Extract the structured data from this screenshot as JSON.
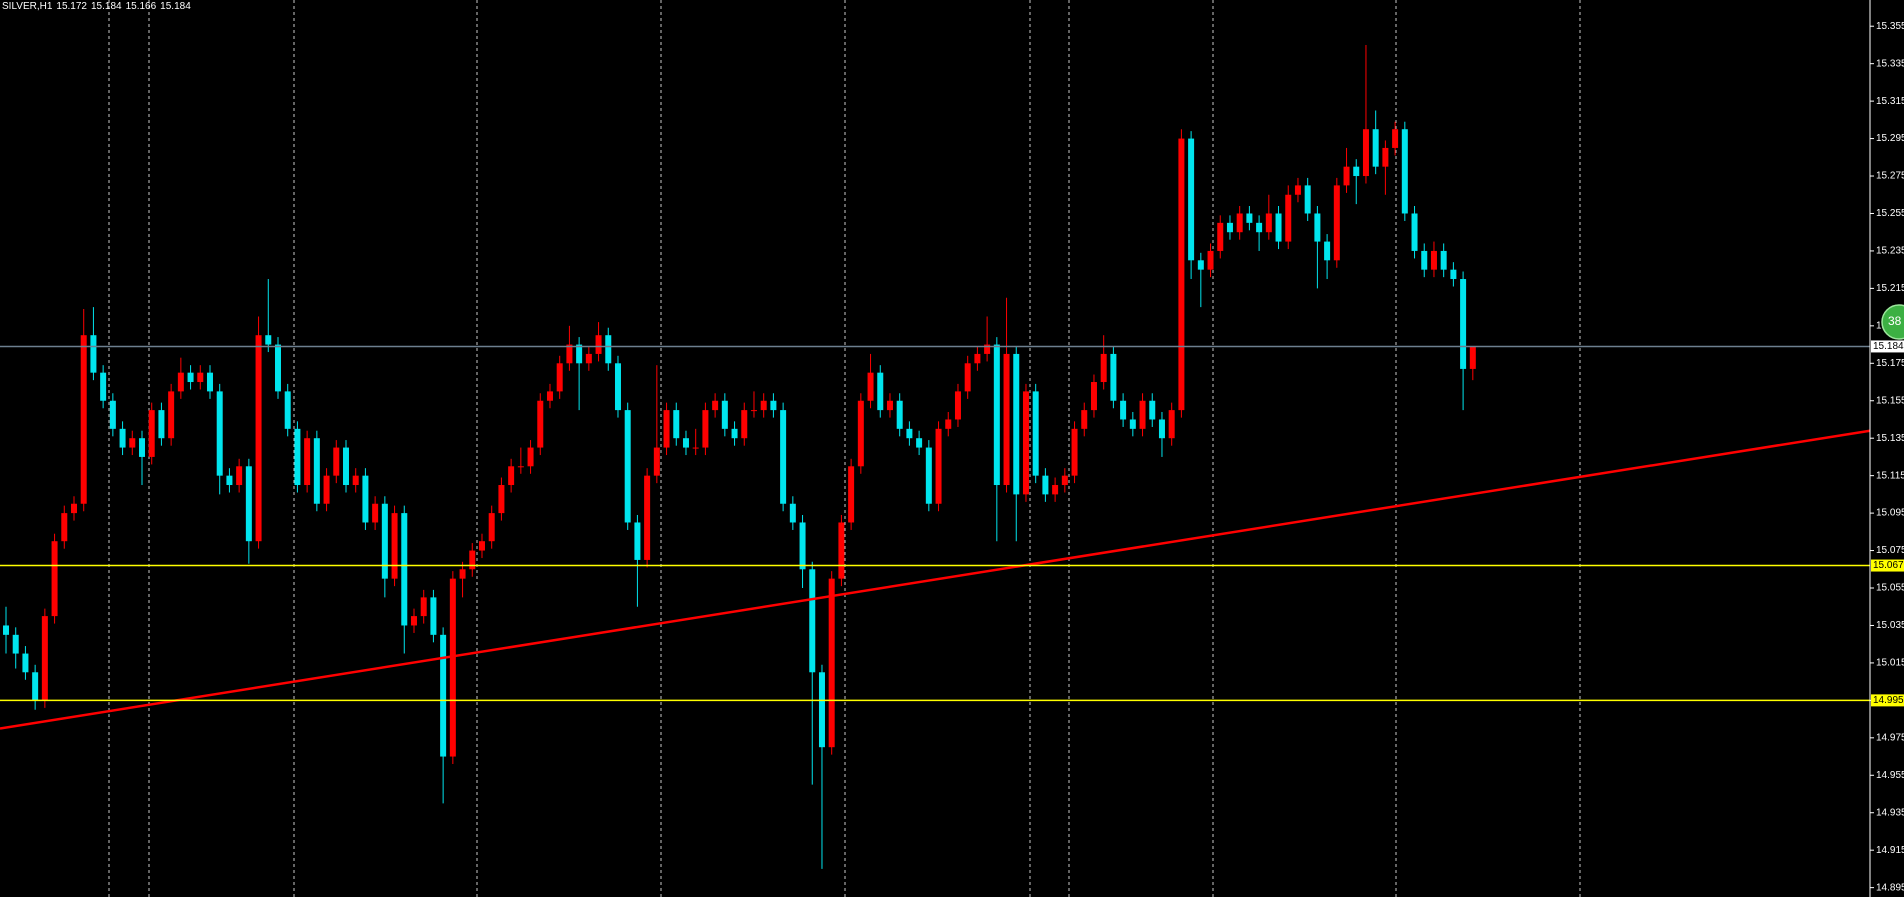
{
  "chart_data": {
    "type": "candlestick",
    "symbol": "SILVER,H1",
    "bull_color": "#ff0000",
    "bear_color": "#00e5ee",
    "ylim": [
      14.89,
      15.369
    ],
    "yticks": [
      15.355,
      15.335,
      15.315,
      15.295,
      15.275,
      15.255,
      15.235,
      15.215,
      15.195,
      15.175,
      15.155,
      15.135,
      15.115,
      15.095,
      15.075,
      15.055,
      15.035,
      15.015,
      14.995,
      14.975,
      14.955,
      14.935,
      14.915,
      14.895
    ],
    "levels": [
      {
        "value": 15.184,
        "color": "#6d7f8f"
      },
      {
        "value": 15.067,
        "color": "#ffff00"
      },
      {
        "value": 14.995,
        "color": "#ffff00"
      }
    ],
    "trendline": {
      "color": "#ff0000",
      "start": 14.98,
      "end": 15.139
    },
    "badge": "38",
    "open": [
      15.035,
      15.03,
      15.02,
      15.01,
      14.995,
      15.04,
      15.08,
      15.095,
      15.1,
      15.19,
      15.17,
      15.155,
      15.14,
      15.13,
      15.135,
      15.125,
      15.15,
      15.135,
      15.16,
      15.17,
      15.165,
      15.17,
      15.16,
      15.115,
      15.11,
      15.12,
      15.08,
      15.19,
      15.185,
      15.16,
      15.14,
      15.11,
      15.135,
      15.1,
      15.115,
      15.13,
      15.11,
      15.115,
      15.09,
      15.1,
      15.06,
      15.095,
      15.035,
      15.04,
      15.05,
      15.03,
      14.965,
      15.06,
      15.065,
      15.075,
      15.08,
      15.095,
      15.11,
      15.12,
      15.12,
      15.13,
      15.155,
      15.16,
      15.175,
      15.185,
      15.175,
      15.18,
      15.19,
      15.175,
      15.15,
      15.09,
      15.07,
      15.115,
      15.13,
      15.15,
      15.135,
      15.13,
      15.13,
      15.15,
      15.155,
      15.14,
      15.135,
      15.15,
      15.15,
      15.155,
      15.15,
      15.1,
      15.09,
      15.065,
      15.01,
      14.97,
      15.06,
      15.09,
      15.12,
      15.155,
      15.17,
      15.15,
      15.155,
      15.14,
      15.135,
      15.13,
      15.1,
      15.14,
      15.145,
      15.16,
      15.175,
      15.18,
      15.185,
      15.11,
      15.18,
      15.105,
      15.16,
      15.115,
      15.105,
      15.11,
      15.115,
      15.14,
      15.15,
      15.165,
      15.18,
      15.155,
      15.145,
      15.14,
      15.155,
      15.145,
      15.135,
      15.15,
      15.295,
      15.23,
      15.225,
      15.235,
      15.25,
      15.245,
      15.255,
      15.25,
      15.245,
      15.255,
      15.24,
      15.265,
      15.27,
      15.255,
      15.24,
      15.23,
      15.27,
      15.28,
      15.275,
      15.3,
      15.28,
      15.29,
      15.3,
      15.255,
      15.235,
      15.225,
      15.235,
      15.225,
      15.22,
      15.172
    ],
    "high": [
      15.045,
      15.034,
      15.024,
      15.014,
      15.044,
      15.084,
      15.099,
      15.104,
      15.204,
      15.205,
      15.174,
      15.159,
      15.144,
      15.139,
      15.139,
      15.154,
      15.154,
      15.164,
      15.178,
      15.174,
      15.174,
      15.174,
      15.164,
      15.119,
      15.124,
      15.124,
      15.2,
      15.22,
      15.189,
      15.164,
      15.144,
      15.139,
      15.139,
      15.119,
      15.134,
      15.134,
      15.119,
      15.119,
      15.104,
      15.104,
      15.099,
      15.099,
      15.044,
      15.054,
      15.054,
      15.034,
      15.064,
      15.069,
      15.079,
      15.084,
      15.099,
      15.114,
      15.124,
      15.13,
      15.134,
      15.159,
      15.164,
      15.179,
      15.195,
      15.189,
      15.184,
      15.197,
      15.194,
      15.179,
      15.154,
      15.094,
      15.119,
      15.174,
      15.154,
      15.154,
      15.139,
      15.14,
      15.154,
      15.159,
      15.159,
      15.144,
      15.154,
      15.16,
      15.159,
      15.159,
      15.154,
      15.104,
      15.094,
      15.069,
      15.014,
      15.064,
      15.094,
      15.124,
      15.159,
      15.18,
      15.174,
      15.159,
      15.159,
      15.144,
      15.139,
      15.134,
      15.144,
      15.149,
      15.164,
      15.179,
      15.184,
      15.2,
      15.189,
      15.21,
      15.184,
      15.164,
      15.164,
      15.119,
      15.114,
      15.119,
      15.144,
      15.154,
      15.169,
      15.19,
      15.184,
      15.159,
      15.149,
      15.159,
      15.159,
      15.149,
      15.154,
      15.3,
      15.299,
      15.234,
      15.239,
      15.254,
      15.254,
      15.259,
      15.259,
      15.254,
      15.265,
      15.259,
      15.27,
      15.274,
      15.274,
      15.259,
      15.244,
      15.274,
      15.29,
      15.284,
      15.345,
      15.31,
      15.294,
      15.304,
      15.304,
      15.259,
      15.239,
      15.24,
      15.239,
      15.229,
      15.224,
      15.184
    ],
    "low": [
      15.02,
      15.012,
      15.006,
      14.99,
      14.991,
      15.036,
      15.076,
      15.091,
      15.096,
      15.166,
      15.151,
      15.136,
      15.126,
      15.126,
      15.11,
      15.121,
      15.131,
      15.131,
      15.156,
      15.161,
      15.161,
      15.156,
      15.105,
      15.106,
      15.106,
      15.068,
      15.076,
      15.181,
      15.156,
      15.136,
      15.106,
      15.106,
      15.096,
      15.096,
      15.111,
      15.106,
      15.106,
      15.086,
      15.086,
      15.05,
      15.056,
      15.02,
      15.031,
      15.036,
      15.026,
      14.94,
      14.961,
      15.05,
      15.061,
      15.071,
      15.076,
      15.091,
      15.106,
      15.116,
      15.116,
      15.126,
      15.151,
      15.156,
      15.171,
      15.15,
      15.171,
      15.176,
      15.171,
      15.146,
      15.086,
      15.045,
      15.066,
      15.111,
      15.126,
      15.131,
      15.126,
      15.126,
      15.126,
      15.146,
      15.136,
      15.131,
      15.131,
      15.146,
      15.146,
      15.146,
      15.096,
      15.086,
      15.055,
      14.95,
      14.905,
      14.966,
      15.056,
      15.086,
      15.116,
      15.151,
      15.146,
      15.146,
      15.136,
      15.131,
      15.126,
      15.096,
      15.096,
      15.136,
      15.141,
      15.156,
      15.171,
      15.176,
      15.08,
      15.106,
      15.08,
      15.101,
      15.111,
      15.101,
      15.101,
      15.106,
      15.111,
      15.136,
      15.146,
      15.161,
      15.151,
      15.141,
      15.136,
      15.136,
      15.141,
      15.125,
      15.131,
      15.146,
      15.22,
      15.205,
      15.221,
      15.231,
      15.241,
      15.241,
      15.246,
      15.235,
      15.241,
      15.236,
      15.236,
      15.261,
      15.251,
      15.215,
      15.22,
      15.226,
      15.266,
      15.26,
      15.271,
      15.276,
      15.265,
      15.286,
      15.251,
      15.231,
      15.221,
      15.221,
      15.221,
      15.216,
      15.15,
      15.166
    ],
    "close": [
      15.03,
      15.02,
      15.01,
      14.995,
      15.04,
      15.08,
      15.095,
      15.1,
      15.19,
      15.17,
      15.155,
      15.14,
      15.13,
      15.135,
      15.125,
      15.15,
      15.135,
      15.16,
      15.17,
      15.165,
      15.17,
      15.16,
      15.115,
      15.11,
      15.12,
      15.08,
      15.19,
      15.185,
      15.16,
      15.14,
      15.11,
      15.135,
      15.1,
      15.115,
      15.13,
      15.11,
      15.115,
      15.09,
      15.1,
      15.06,
      15.095,
      15.035,
      15.04,
      15.05,
      15.03,
      14.965,
      15.06,
      15.065,
      15.075,
      15.08,
      15.095,
      15.11,
      15.12,
      15.12,
      15.13,
      15.155,
      15.16,
      15.175,
      15.185,
      15.175,
      15.18,
      15.19,
      15.175,
      15.15,
      15.09,
      15.07,
      15.115,
      15.13,
      15.15,
      15.135,
      15.13,
      15.13,
      15.15,
      15.155,
      15.14,
      15.135,
      15.15,
      15.15,
      15.155,
      15.15,
      15.1,
      15.09,
      15.065,
      15.01,
      14.97,
      15.06,
      15.09,
      15.12,
      15.155,
      15.17,
      15.15,
      15.155,
      15.14,
      15.135,
      15.13,
      15.1,
      15.14,
      15.145,
      15.16,
      15.175,
      15.18,
      15.185,
      15.11,
      15.18,
      15.105,
      15.16,
      15.115,
      15.105,
      15.11,
      15.115,
      15.14,
      15.15,
      15.165,
      15.18,
      15.155,
      15.145,
      15.14,
      15.155,
      15.145,
      15.135,
      15.15,
      15.295,
      15.23,
      15.225,
      15.235,
      15.25,
      15.245,
      15.255,
      15.25,
      15.245,
      15.255,
      15.24,
      15.265,
      15.27,
      15.255,
      15.24,
      15.23,
      15.27,
      15.28,
      15.275,
      15.3,
      15.28,
      15.29,
      15.3,
      15.255,
      15.235,
      15.225,
      15.235,
      15.225,
      15.22,
      15.172,
      15.184
    ]
  }
}
